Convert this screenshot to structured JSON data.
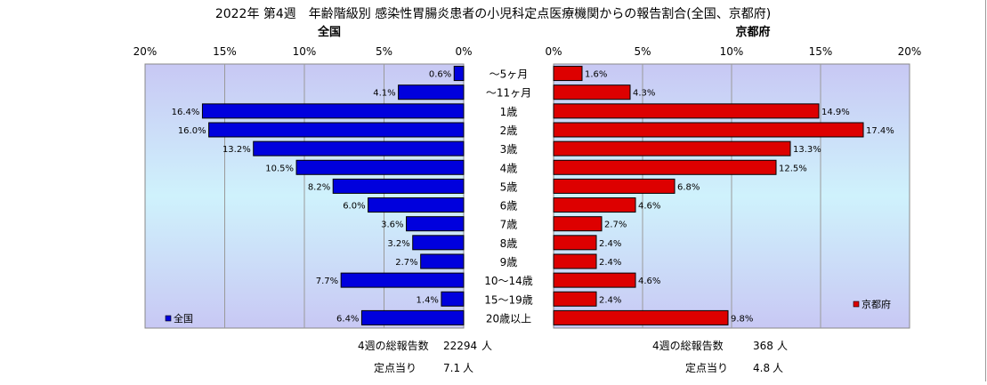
{
  "chart_data": {
    "type": "bar",
    "title": "2022年 第4週　年齢階級別 感染性胃腸炎患者の小児科定点医療機関からの報告割合(全国、京都府)",
    "categories": [
      "～5ヶ月",
      "～11ヶ月",
      "1歳",
      "2歳",
      "3歳",
      "4歳",
      "5歳",
      "6歳",
      "7歳",
      "8歳",
      "9歳",
      "10～14歳",
      "15～19歳",
      "20歳以上"
    ],
    "xlim": [
      0,
      20
    ],
    "xticks": [
      "0%",
      "5%",
      "10%",
      "15%",
      "20%"
    ],
    "grid": true,
    "series": [
      {
        "name": "全国",
        "title": "全国",
        "color": "#0000dd",
        "legend_position": "bottom-left",
        "values": [
          0.6,
          4.1,
          16.4,
          16.0,
          13.2,
          10.5,
          8.2,
          6.0,
          3.6,
          3.2,
          2.7,
          7.7,
          1.4,
          6.4
        ],
        "labels": [
          "0.6%",
          "4.1%",
          "16.4%",
          "16.0%",
          "13.2%",
          "10.5%",
          "8.2%",
          "6.0%",
          "3.6%",
          "3.2%",
          "2.7%",
          "7.7%",
          "1.4%",
          "6.4%"
        ]
      },
      {
        "name": "京都府",
        "title": "京都府",
        "color": "#dd0000",
        "legend_position": "bottom-right",
        "values": [
          1.6,
          4.3,
          14.9,
          17.4,
          13.3,
          12.5,
          6.8,
          4.6,
          2.7,
          2.4,
          2.4,
          4.6,
          2.4,
          9.8
        ],
        "labels": [
          "1.6%",
          "4.3%",
          "14.9%",
          "17.4%",
          "13.3%",
          "12.5%",
          "6.8%",
          "4.6%",
          "2.7%",
          "2.4%",
          "2.4%",
          "4.6%",
          "2.4%",
          "9.8%"
        ]
      }
    ]
  },
  "notes": {
    "national_total_label": "4週の総報告数",
    "national_total_value": "22294",
    "national_total_unit": "人",
    "national_per_label": "定点当り",
    "national_per_value": "7.1",
    "national_per_unit": "人",
    "kyoto_total_label": "4週の総報告数",
    "kyoto_total_value": "368",
    "kyoto_total_unit": "人",
    "kyoto_per_label": "定点当り",
    "kyoto_per_value": "4.8",
    "kyoto_per_unit": "人"
  }
}
